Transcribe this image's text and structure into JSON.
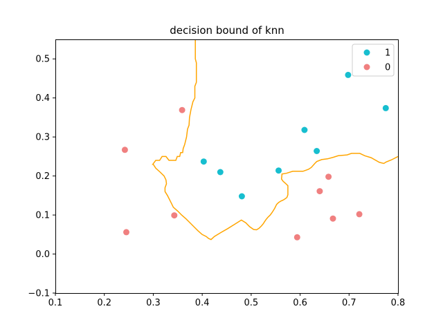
{
  "chart_data": {
    "type": "scatter",
    "title": "decision bound of knn",
    "xlabel": "",
    "ylabel": "",
    "xlim": [
      0.1,
      0.8
    ],
    "ylim": [
      -0.1,
      0.55
    ],
    "xticks": [
      "0.1",
      "0.2",
      "0.3",
      "0.4",
      "0.5",
      "0.6",
      "0.7",
      "0.8"
    ],
    "yticks": [
      "−0.1",
      "0.0",
      "0.1",
      "0.2",
      "0.3",
      "0.4",
      "0.5"
    ],
    "grid": false,
    "legend_position": "top-right",
    "series": [
      {
        "name": "1",
        "color": "#17becf",
        "points": [
          [
            0.403,
            0.237
          ],
          [
            0.437,
            0.21
          ],
          [
            0.481,
            0.148
          ],
          [
            0.556,
            0.214
          ],
          [
            0.609,
            0.318
          ],
          [
            0.634,
            0.264
          ],
          [
            0.698,
            0.459
          ],
          [
            0.775,
            0.374
          ]
        ]
      },
      {
        "name": "0",
        "color": "#f08080",
        "points": [
          [
            0.242,
            0.267
          ],
          [
            0.245,
            0.056
          ],
          [
            0.343,
            0.099
          ],
          [
            0.359,
            0.369
          ],
          [
            0.594,
            0.043
          ],
          [
            0.64,
            0.161
          ],
          [
            0.658,
            0.198
          ],
          [
            0.667,
            0.091
          ],
          [
            0.721,
            0.102
          ]
        ]
      }
    ],
    "boundary": {
      "color": "#ffa500",
      "points": [
        [
          0.386,
          0.55
        ],
        [
          0.386,
          0.5
        ],
        [
          0.388,
          0.49
        ],
        [
          0.388,
          0.44
        ],
        [
          0.385,
          0.43
        ],
        [
          0.385,
          0.4
        ],
        [
          0.381,
          0.39
        ],
        [
          0.379,
          0.38
        ],
        [
          0.377,
          0.37
        ],
        [
          0.374,
          0.35
        ],
        [
          0.373,
          0.33
        ],
        [
          0.37,
          0.32
        ],
        [
          0.368,
          0.3
        ],
        [
          0.364,
          0.28
        ],
        [
          0.361,
          0.27
        ],
        [
          0.36,
          0.26
        ],
        [
          0.356,
          0.26
        ],
        [
          0.354,
          0.25
        ],
        [
          0.349,
          0.25
        ],
        [
          0.346,
          0.24
        ],
        [
          0.332,
          0.24
        ],
        [
          0.326,
          0.25
        ],
        [
          0.318,
          0.25
        ],
        [
          0.313,
          0.24
        ],
        [
          0.305,
          0.24
        ],
        [
          0.299,
          0.23
        ],
        [
          0.3,
          0.23
        ],
        [
          0.305,
          0.22
        ],
        [
          0.314,
          0.21
        ],
        [
          0.322,
          0.2
        ],
        [
          0.326,
          0.19
        ],
        [
          0.327,
          0.18
        ],
        [
          0.324,
          0.17
        ],
        [
          0.324,
          0.16
        ],
        [
          0.329,
          0.15
        ],
        [
          0.333,
          0.14
        ],
        [
          0.337,
          0.13
        ],
        [
          0.341,
          0.12
        ],
        [
          0.35,
          0.11
        ],
        [
          0.358,
          0.1
        ],
        [
          0.367,
          0.09
        ],
        [
          0.375,
          0.08
        ],
        [
          0.383,
          0.07
        ],
        [
          0.391,
          0.06
        ],
        [
          0.4,
          0.05
        ],
        [
          0.408,
          0.045
        ],
        [
          0.413,
          0.04
        ],
        [
          0.418,
          0.037
        ],
        [
          0.425,
          0.045
        ],
        [
          0.438,
          0.055
        ],
        [
          0.452,
          0.065
        ],
        [
          0.466,
          0.076
        ],
        [
          0.48,
          0.087
        ],
        [
          0.489,
          0.08
        ],
        [
          0.497,
          0.07
        ],
        [
          0.505,
          0.063
        ],
        [
          0.511,
          0.062
        ],
        [
          0.516,
          0.066
        ],
        [
          0.521,
          0.072
        ],
        [
          0.525,
          0.078
        ],
        [
          0.527,
          0.082
        ],
        [
          0.53,
          0.088
        ],
        [
          0.534,
          0.094
        ],
        [
          0.539,
          0.1
        ],
        [
          0.543,
          0.107
        ],
        [
          0.548,
          0.117
        ],
        [
          0.552,
          0.127
        ],
        [
          0.556,
          0.132
        ],
        [
          0.561,
          0.136
        ],
        [
          0.565,
          0.138
        ],
        [
          0.569,
          0.141
        ],
        [
          0.573,
          0.145
        ],
        [
          0.575,
          0.152
        ],
        [
          0.575,
          0.175
        ],
        [
          0.571,
          0.18
        ],
        [
          0.565,
          0.187
        ],
        [
          0.562,
          0.192
        ],
        [
          0.563,
          0.205
        ],
        [
          0.572,
          0.207
        ],
        [
          0.585,
          0.212
        ],
        [
          0.606,
          0.212
        ],
        [
          0.617,
          0.217
        ],
        [
          0.623,
          0.222
        ],
        [
          0.63,
          0.232
        ],
        [
          0.634,
          0.237
        ],
        [
          0.644,
          0.242
        ],
        [
          0.656,
          0.244
        ],
        [
          0.668,
          0.248
        ],
        [
          0.678,
          0.252
        ],
        [
          0.696,
          0.254
        ],
        [
          0.705,
          0.258
        ],
        [
          0.722,
          0.258
        ],
        [
          0.732,
          0.252
        ],
        [
          0.745,
          0.247
        ],
        [
          0.762,
          0.235
        ],
        [
          0.771,
          0.232
        ],
        [
          0.776,
          0.236
        ],
        [
          0.786,
          0.241
        ],
        [
          0.8,
          0.25
        ]
      ]
    }
  }
}
